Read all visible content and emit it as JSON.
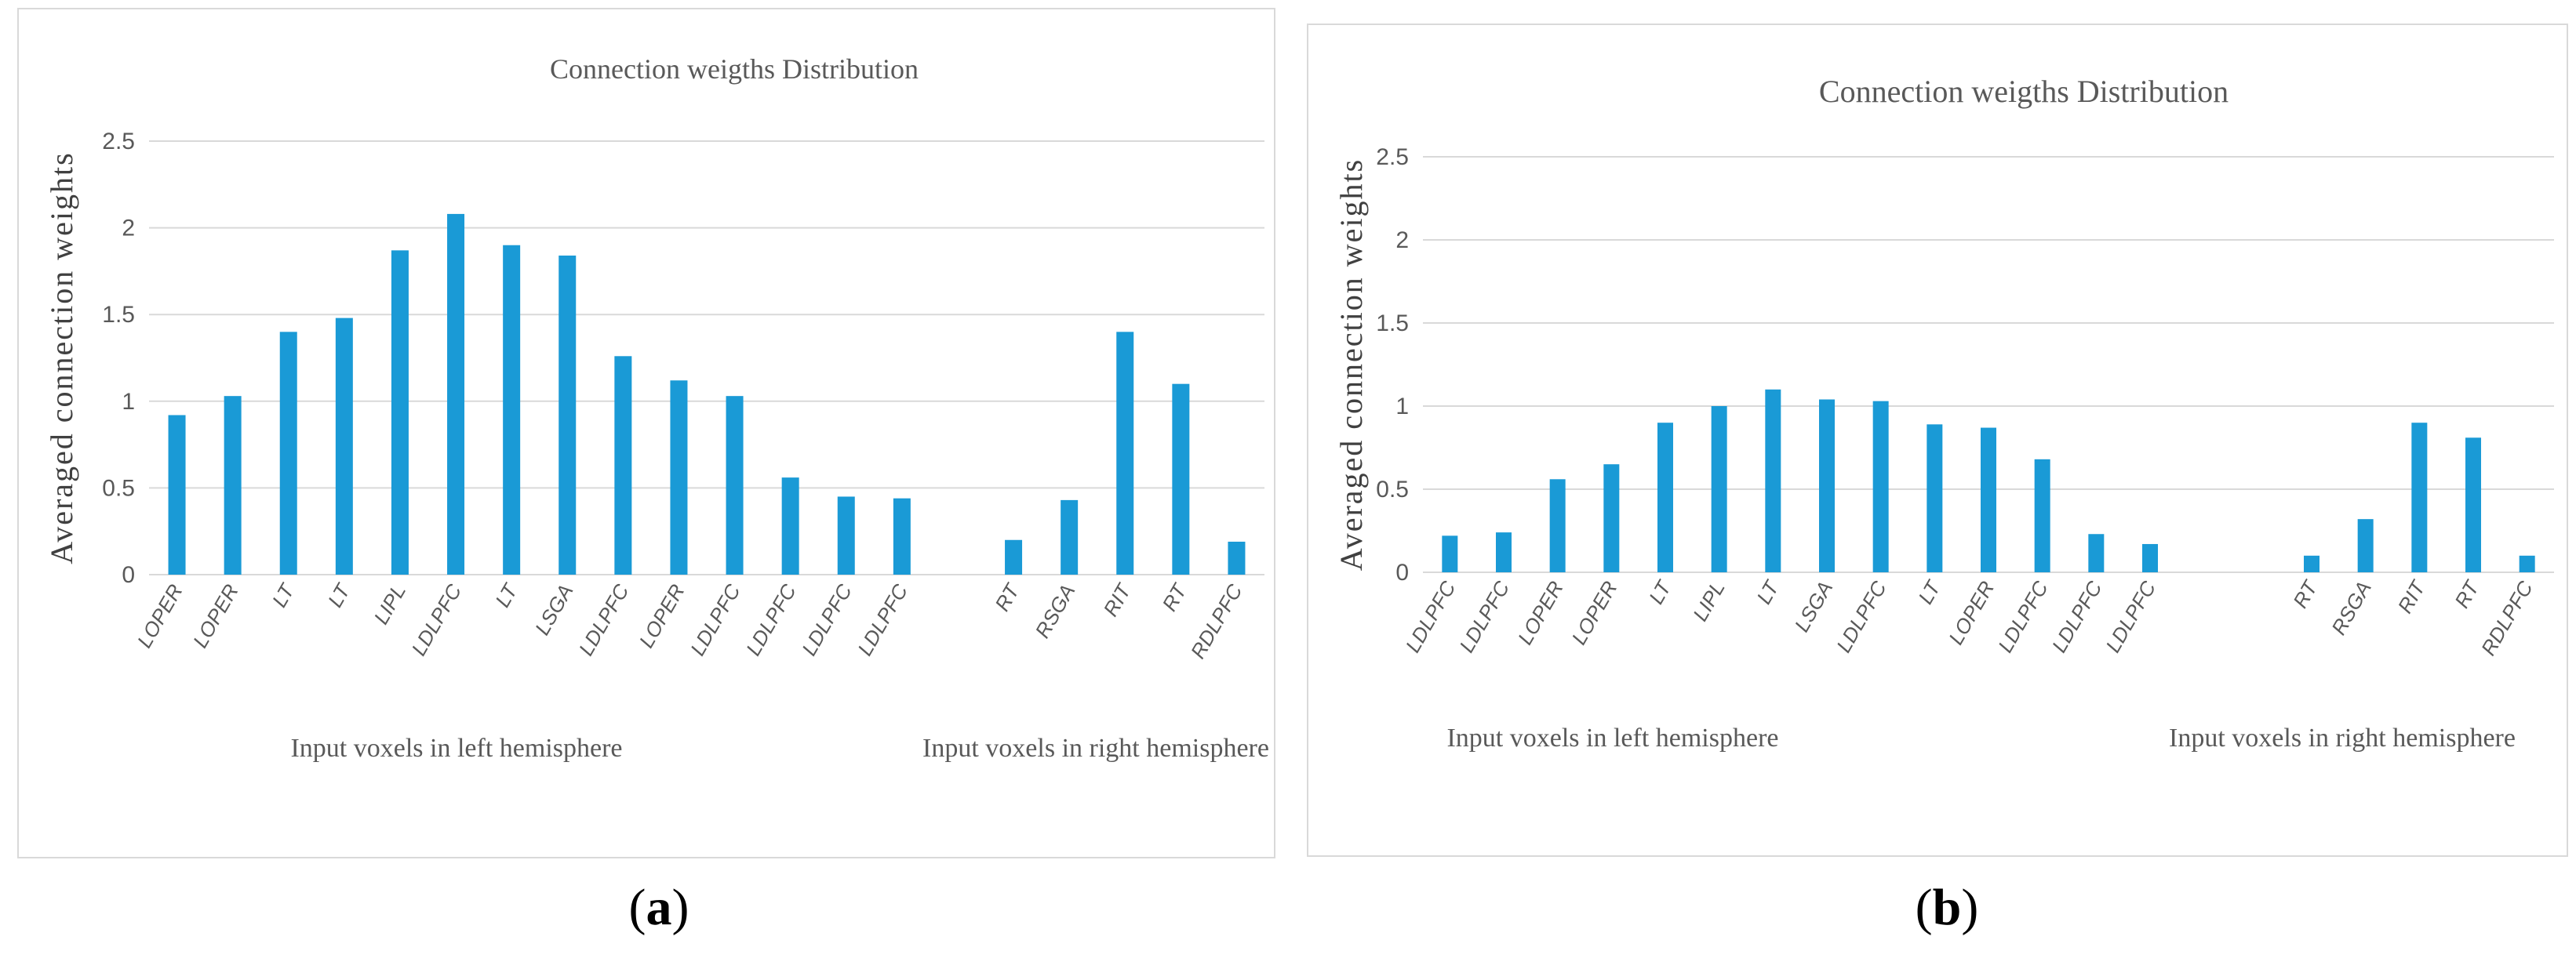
{
  "colors": {
    "bar": "#1a9ad6",
    "grid": "#d9d9d9",
    "text": "#595959"
  },
  "chart_data": [
    {
      "type": "bar",
      "panel": "a",
      "title": "Connection weigths Distribution",
      "xlabel": "",
      "ylabel": "",
      "ylim": [
        0,
        2.5
      ],
      "yticks": [
        "0",
        "0.5",
        "1",
        "1.5",
        "2",
        "2.5"
      ],
      "grid": true,
      "categories": [
        "LOPER",
        "LOPER",
        "LT",
        "LT",
        "LIPL",
        "LDLPFC",
        "LT",
        "LSGA",
        "LDLPFC",
        "LOPER",
        "LDLPFC",
        "LDLPFC",
        "LDLPFC",
        "LDLPFC",
        "",
        "RT",
        "RSGA",
        "RIT",
        "RT",
        "RDLPFC"
      ],
      "values": [
        0.92,
        1.03,
        1.4,
        1.48,
        1.87,
        2.08,
        1.9,
        1.84,
        1.26,
        1.12,
        1.03,
        0.56,
        0.45,
        0.44,
        null,
        0.2,
        0.43,
        1.4,
        1.1,
        0.19
      ],
      "groups": [
        "Input voxels in left hemisphere",
        "Input voxels in right hemisphere"
      ]
    },
    {
      "type": "bar",
      "panel": "b",
      "title": "Connection weigths Distribution",
      "xlabel": "",
      "ylabel": "Averaged  connection weights",
      "ylim": [
        0,
        2.5
      ],
      "yticks": [
        "0",
        "0.5",
        "1",
        "1.5",
        "2",
        "2.5"
      ],
      "grid": true,
      "categories": [
        "LDLPFC",
        "LDLPFC",
        "LOPER",
        "LOPER",
        "LT",
        "LIPL",
        "LT",
        "LSGA",
        "LDLPFC",
        "LT",
        "LOPER",
        "LDLPFC",
        "LDLPFC",
        "LDLPFC",
        "",
        "",
        "RT",
        "RSGA",
        "RIT",
        "RT",
        "RDLPFC"
      ],
      "values": [
        0.22,
        0.24,
        0.56,
        0.65,
        0.9,
        1.0,
        1.1,
        1.04,
        1.03,
        0.89,
        0.87,
        0.68,
        0.23,
        0.17,
        null,
        null,
        0.1,
        0.32,
        0.9,
        0.81,
        0.1
      ],
      "groups": [
        "Input voxels in left hemisphere",
        "Input voxels in right hemisphere"
      ]
    }
  ],
  "panels": [
    {
      "ylabel": "Averaged  connection weights",
      "caption_open": "(",
      "caption_letter": "a",
      "caption_close": ")"
    },
    {
      "ylabel": "Averaged  connection weights",
      "caption_open": "(",
      "caption_letter": "b",
      "caption_close": ")"
    }
  ]
}
